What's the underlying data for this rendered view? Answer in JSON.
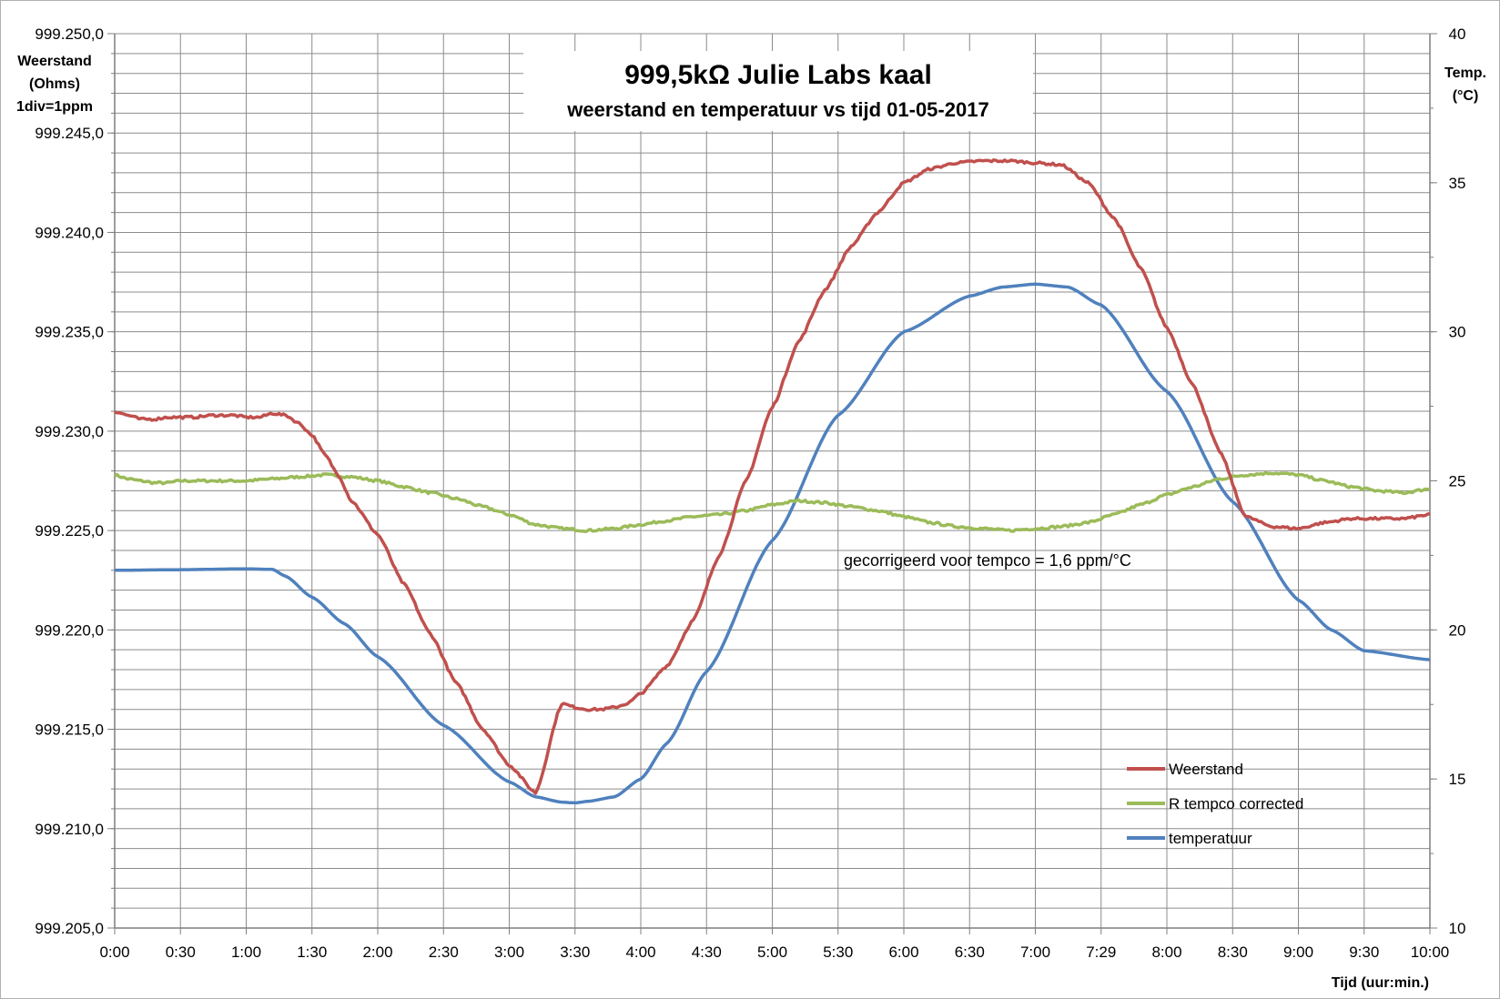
{
  "chart_data": {
    "type": "line",
    "title": "999,5kΩ  Julie Labs  kaal",
    "subtitle": "weerstand en temperatuur vs tijd 01-05-2017",
    "ylabel_left": [
      "Weerstand",
      "(Ohms)",
      "1div=1ppm"
    ],
    "ylabel_right": [
      "Temp.",
      "(°C)"
    ],
    "xlabel": "Tijd (uur:min.)",
    "x_tick_labels": [
      "0:00",
      "0:30",
      "1:00",
      "1:30",
      "2:00",
      "2:30",
      "3:00",
      "3:30",
      "4:00",
      "4:30",
      "5:00",
      "5:30",
      "6:00",
      "6:30",
      "7:00",
      "7:29",
      "8:00",
      "8:30",
      "9:00",
      "9:30",
      "10:00"
    ],
    "x_range_hours": [
      0,
      10
    ],
    "y_left_tick_labels": [
      "999.205,0",
      "999.210,0",
      "999.215,0",
      "999.220,0",
      "999.225,0",
      "999.230,0",
      "999.235,0",
      "999.240,0",
      "999.245,0",
      "999.250,0"
    ],
    "y_left_range": [
      999.205,
      999.25
    ],
    "y_right_tick_labels": [
      "10",
      "15",
      "20",
      "25",
      "30",
      "35",
      "40"
    ],
    "y_right_range": [
      10,
      40
    ],
    "grid": true,
    "legend_position": "bottom-right",
    "annotation": "gecorrigeerd voor tempco = 1,6 ppm/°C",
    "series": [
      {
        "name": "Weerstand",
        "axis": "left",
        "color": "#c0504d",
        "x": [
          0,
          0.1,
          0.2,
          0.3,
          0.4,
          0.5,
          0.6,
          0.75,
          0.9,
          1.0,
          1.1,
          1.2,
          1.3,
          1.4,
          1.5,
          1.6,
          1.7,
          1.8,
          2.0,
          2.2,
          2.4,
          2.6,
          2.8,
          3.0,
          3.2,
          3.4,
          3.5,
          3.6,
          3.7,
          3.8,
          3.9,
          4.0,
          4.2,
          4.4,
          4.6,
          4.8,
          5.0,
          5.2,
          5.4,
          5.6,
          5.8,
          6.0,
          6.2,
          6.4,
          6.6,
          6.8,
          7.0,
          7.2,
          7.4,
          7.6,
          7.8,
          8.0,
          8.2,
          8.4,
          8.6,
          8.8,
          9.0,
          9.2,
          9.4,
          9.6,
          9.8,
          10.0
        ],
        "values": [
          999.231,
          999.2308,
          999.2306,
          999.2306,
          999.2307,
          999.2307,
          999.2307,
          999.2308,
          999.2308,
          999.2307,
          999.2307,
          999.2309,
          999.2308,
          999.2304,
          999.2298,
          999.2288,
          999.2278,
          999.2265,
          999.2248,
          999.2223,
          999.2198,
          999.2173,
          999.215,
          999.2132,
          999.2118,
          999.2163,
          999.2161,
          999.216,
          999.216,
          999.2161,
          999.2163,
          999.2168,
          999.2182,
          999.2205,
          999.2238,
          999.2275,
          999.2312,
          999.2345,
          999.2371,
          999.2393,
          999.241,
          999.2425,
          999.2432,
          999.2435,
          999.2436,
          999.2436,
          999.2435,
          999.2434,
          999.2425,
          999.2407,
          999.2382,
          999.2352,
          999.2323,
          999.229,
          999.2257,
          999.2252,
          999.2251,
          999.2254,
          999.2256,
          999.2256,
          999.2256,
          999.2258
        ]
      },
      {
        "name": "R tempco  corrected",
        "axis": "left",
        "color": "#9bbb59",
        "x": [
          0,
          0.1,
          0.2,
          0.3,
          0.4,
          0.5,
          0.6,
          0.75,
          0.9,
          1.0,
          1.2,
          1.4,
          1.6,
          1.8,
          2.0,
          2.2,
          2.4,
          2.6,
          2.8,
          3.0,
          3.2,
          3.4,
          3.6,
          3.8,
          4.0,
          4.2,
          4.4,
          4.6,
          4.8,
          5.0,
          5.2,
          5.4,
          5.6,
          5.8,
          6.0,
          6.2,
          6.4,
          6.6,
          6.8,
          7.0,
          7.2,
          7.4,
          7.6,
          7.8,
          8.0,
          8.2,
          8.4,
          8.6,
          8.8,
          9.0,
          9.2,
          9.4,
          9.6,
          9.8,
          10.0
        ],
        "values": [
          999.2278,
          999.2276,
          999.2275,
          999.2274,
          999.2274,
          999.2275,
          999.2275,
          999.2275,
          999.2275,
          999.2275,
          999.2276,
          999.2277,
          999.2278,
          999.2277,
          999.2275,
          999.2272,
          999.2269,
          999.2266,
          999.2262,
          999.2258,
          999.2253,
          999.2251,
          999.225,
          999.2251,
          999.2253,
          999.2255,
          999.2257,
          999.2258,
          999.226,
          999.2263,
          999.2265,
          999.2264,
          999.2262,
          999.226,
          999.2257,
          999.2254,
          999.2252,
          999.2251,
          999.225,
          999.2251,
          999.2252,
          999.2254,
          999.2258,
          999.2263,
          999.2268,
          999.2272,
          999.2276,
          999.2278,
          999.2279,
          999.2278,
          999.2275,
          999.2272,
          999.227,
          999.2269,
          999.2271
        ]
      },
      {
        "name": "temperatuur",
        "axis": "right",
        "color": "#4f81bd",
        "x": [
          0,
          0.5,
          1.0,
          1.2,
          1.3,
          1.5,
          1.75,
          2.0,
          2.5,
          3.0,
          3.2,
          3.4,
          3.5,
          3.6,
          3.8,
          4.0,
          4.2,
          4.5,
          5.0,
          5.5,
          6.0,
          6.5,
          6.75,
          7.0,
          7.25,
          7.5,
          8.0,
          8.5,
          9.0,
          9.25,
          9.5,
          10.0
        ],
        "values": [
          22,
          22.02,
          22.05,
          22.03,
          21.8,
          21.1,
          20.2,
          19.1,
          16.8,
          14.9,
          14.4,
          14.22,
          14.2,
          14.25,
          14.4,
          15.0,
          16.2,
          18.6,
          23.0,
          27.2,
          30.0,
          31.2,
          31.5,
          31.6,
          31.5,
          30.9,
          28.0,
          24.3,
          21.0,
          20.0,
          19.3,
          19.0
        ]
      }
    ]
  },
  "legend": {
    "items": [
      {
        "label": "Weerstand",
        "color": "#c0504d"
      },
      {
        "label": "R tempco  corrected",
        "color": "#9bbb59"
      },
      {
        "label": "temperatuur",
        "color": "#4f81bd"
      }
    ]
  }
}
